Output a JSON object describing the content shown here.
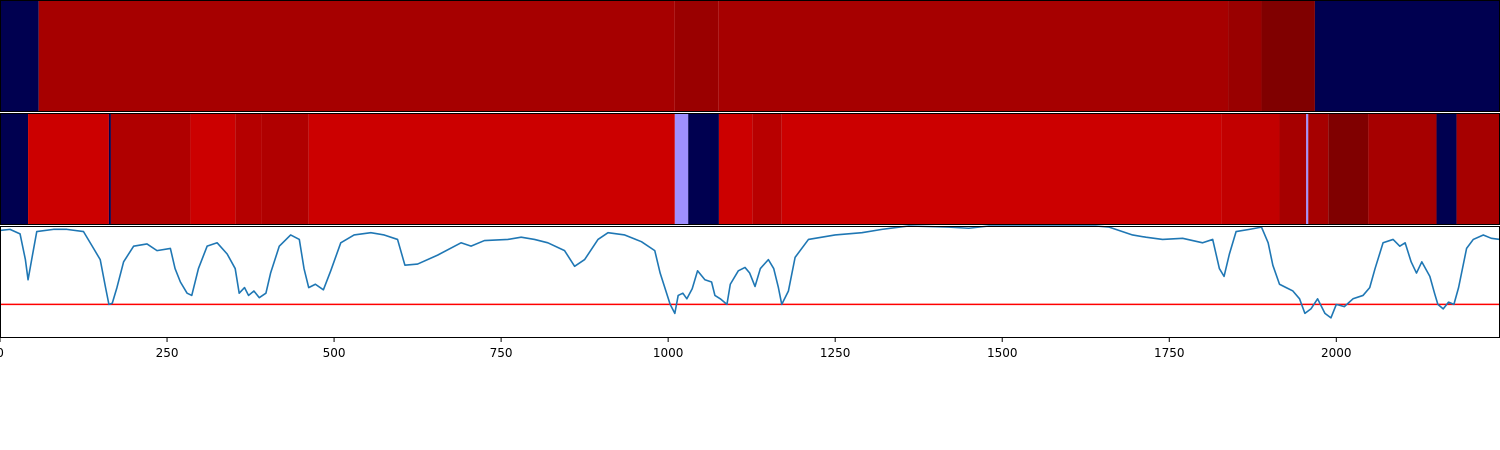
{
  "chart_data": [
    {
      "type": "heatmap",
      "xlim": [
        0,
        2245
      ],
      "segments": [
        {
          "start": 0,
          "end": 58,
          "color": "#000050"
        },
        {
          "start": 58,
          "end": 1010,
          "color": "#a60000"
        },
        {
          "start": 1010,
          "end": 1075,
          "color": "#9a0000"
        },
        {
          "start": 1075,
          "end": 1838,
          "color": "#a60000"
        },
        {
          "start": 1838,
          "end": 1888,
          "color": "#990000"
        },
        {
          "start": 1888,
          "end": 1968,
          "color": "#800000"
        },
        {
          "start": 1968,
          "end": 2245,
          "color": "#000050"
        }
      ]
    },
    {
      "type": "heatmap",
      "xlim": [
        0,
        2245
      ],
      "segments": [
        {
          "start": 0,
          "end": 42,
          "color": "#000050"
        },
        {
          "start": 42,
          "end": 163,
          "color": "#cc0000"
        },
        {
          "start": 163,
          "end": 166,
          "color": "#000050"
        },
        {
          "start": 166,
          "end": 285,
          "color": "#b00000"
        },
        {
          "start": 285,
          "end": 352,
          "color": "#cc0000"
        },
        {
          "start": 352,
          "end": 392,
          "color": "#b50000"
        },
        {
          "start": 392,
          "end": 462,
          "color": "#b00000"
        },
        {
          "start": 462,
          "end": 1010,
          "color": "#cc0000"
        },
        {
          "start": 1010,
          "end": 1030,
          "color": "#a090ff"
        },
        {
          "start": 1030,
          "end": 1076,
          "color": "#000050"
        },
        {
          "start": 1076,
          "end": 1126,
          "color": "#cc0000"
        },
        {
          "start": 1126,
          "end": 1170,
          "color": "#b80000"
        },
        {
          "start": 1170,
          "end": 1828,
          "color": "#cc0000"
        },
        {
          "start": 1828,
          "end": 1915,
          "color": "#c20000"
        },
        {
          "start": 1915,
          "end": 1955,
          "color": "#a60000"
        },
        {
          "start": 1955,
          "end": 1958,
          "color": "#a090ff"
        },
        {
          "start": 1958,
          "end": 1988,
          "color": "#a60000"
        },
        {
          "start": 1988,
          "end": 2048,
          "color": "#800000"
        },
        {
          "start": 2048,
          "end": 2150,
          "color": "#a60000"
        },
        {
          "start": 2150,
          "end": 2180,
          "color": "#000050"
        },
        {
          "start": 2180,
          "end": 2245,
          "color": "#a60000"
        }
      ]
    },
    {
      "type": "line",
      "xlim": [
        0,
        2245
      ],
      "ylim": [
        0,
        1
      ],
      "line_color": "#1f77b4",
      "threshold": 0.3,
      "threshold_color": "#ff0000",
      "xticks": [
        0,
        250,
        500,
        750,
        1000,
        1250,
        1500,
        1750,
        2000
      ],
      "points": [
        [
          0,
          0.96
        ],
        [
          15,
          0.97
        ],
        [
          30,
          0.93
        ],
        [
          38,
          0.7
        ],
        [
          42,
          0.52
        ],
        [
          48,
          0.72
        ],
        [
          55,
          0.95
        ],
        [
          80,
          0.97
        ],
        [
          100,
          0.97
        ],
        [
          125,
          0.95
        ],
        [
          140,
          0.8
        ],
        [
          150,
          0.7
        ],
        [
          158,
          0.45
        ],
        [
          163,
          0.3
        ],
        [
          168,
          0.31
        ],
        [
          175,
          0.45
        ],
        [
          185,
          0.68
        ],
        [
          200,
          0.82
        ],
        [
          220,
          0.84
        ],
        [
          235,
          0.78
        ],
        [
          255,
          0.8
        ],
        [
          262,
          0.62
        ],
        [
          270,
          0.5
        ],
        [
          280,
          0.4
        ],
        [
          287,
          0.38
        ],
        [
          297,
          0.62
        ],
        [
          310,
          0.82
        ],
        [
          325,
          0.85
        ],
        [
          340,
          0.75
        ],
        [
          352,
          0.62
        ],
        [
          358,
          0.4
        ],
        [
          366,
          0.45
        ],
        [
          372,
          0.38
        ],
        [
          380,
          0.42
        ],
        [
          388,
          0.36
        ],
        [
          398,
          0.4
        ],
        [
          405,
          0.58
        ],
        [
          418,
          0.82
        ],
        [
          435,
          0.92
        ],
        [
          448,
          0.88
        ],
        [
          455,
          0.62
        ],
        [
          462,
          0.45
        ],
        [
          472,
          0.48
        ],
        [
          484,
          0.43
        ],
        [
          495,
          0.6
        ],
        [
          510,
          0.85
        ],
        [
          530,
          0.92
        ],
        [
          555,
          0.94
        ],
        [
          575,
          0.92
        ],
        [
          595,
          0.88
        ],
        [
          606,
          0.65
        ],
        [
          625,
          0.66
        ],
        [
          655,
          0.74
        ],
        [
          690,
          0.85
        ],
        [
          705,
          0.82
        ],
        [
          725,
          0.87
        ],
        [
          760,
          0.88
        ],
        [
          780,
          0.9
        ],
        [
          800,
          0.88
        ],
        [
          820,
          0.85
        ],
        [
          845,
          0.78
        ],
        [
          860,
          0.64
        ],
        [
          875,
          0.7
        ],
        [
          895,
          0.88
        ],
        [
          910,
          0.94
        ],
        [
          935,
          0.92
        ],
        [
          960,
          0.86
        ],
        [
          980,
          0.78
        ],
        [
          988,
          0.58
        ],
        [
          995,
          0.45
        ],
        [
          1003,
          0.3
        ],
        [
          1010,
          0.22
        ],
        [
          1015,
          0.38
        ],
        [
          1022,
          0.4
        ],
        [
          1028,
          0.35
        ],
        [
          1036,
          0.44
        ],
        [
          1044,
          0.6
        ],
        [
          1055,
          0.52
        ],
        [
          1065,
          0.5
        ],
        [
          1070,
          0.38
        ],
        [
          1078,
          0.35
        ],
        [
          1088,
          0.3
        ],
        [
          1093,
          0.48
        ],
        [
          1105,
          0.6
        ],
        [
          1115,
          0.63
        ],
        [
          1122,
          0.58
        ],
        [
          1130,
          0.46
        ],
        [
          1138,
          0.62
        ],
        [
          1150,
          0.7
        ],
        [
          1158,
          0.62
        ],
        [
          1165,
          0.45
        ],
        [
          1170,
          0.3
        ],
        [
          1180,
          0.42
        ],
        [
          1190,
          0.72
        ],
        [
          1210,
          0.88
        ],
        [
          1250,
          0.92
        ],
        [
          1290,
          0.94
        ],
        [
          1320,
          0.97
        ],
        [
          1360,
          1.0
        ],
        [
          1420,
          0.99
        ],
        [
          1450,
          0.98
        ],
        [
          1480,
          1.0
        ],
        [
          1560,
          1.0
        ],
        [
          1640,
          1.0
        ],
        [
          1660,
          0.99
        ],
        [
          1675,
          0.96
        ],
        [
          1695,
          0.92
        ],
        [
          1715,
          0.9
        ],
        [
          1740,
          0.88
        ],
        [
          1770,
          0.89
        ],
        [
          1800,
          0.85
        ],
        [
          1815,
          0.88
        ],
        [
          1825,
          0.62
        ],
        [
          1832,
          0.55
        ],
        [
          1840,
          0.75
        ],
        [
          1850,
          0.95
        ],
        [
          1870,
          0.97
        ],
        [
          1888,
          0.99
        ],
        [
          1898,
          0.85
        ],
        [
          1905,
          0.65
        ],
        [
          1915,
          0.48
        ],
        [
          1925,
          0.45
        ],
        [
          1935,
          0.42
        ],
        [
          1945,
          0.35
        ],
        [
          1953,
          0.22
        ],
        [
          1962,
          0.26
        ],
        [
          1972,
          0.35
        ],
        [
          1983,
          0.22
        ],
        [
          1992,
          0.18
        ],
        [
          2000,
          0.3
        ],
        [
          2012,
          0.28
        ],
        [
          2025,
          0.35
        ],
        [
          2040,
          0.38
        ],
        [
          2050,
          0.45
        ],
        [
          2058,
          0.62
        ],
        [
          2070,
          0.85
        ],
        [
          2085,
          0.88
        ],
        [
          2095,
          0.82
        ],
        [
          2103,
          0.85
        ],
        [
          2112,
          0.68
        ],
        [
          2120,
          0.58
        ],
        [
          2128,
          0.68
        ],
        [
          2140,
          0.55
        ],
        [
          2147,
          0.4
        ],
        [
          2152,
          0.3
        ],
        [
          2160,
          0.26
        ],
        [
          2168,
          0.32
        ],
        [
          2176,
          0.3
        ],
        [
          2183,
          0.45
        ],
        [
          2195,
          0.8
        ],
        [
          2205,
          0.88
        ],
        [
          2220,
          0.92
        ],
        [
          2232,
          0.89
        ],
        [
          2245,
          0.88
        ]
      ]
    }
  ]
}
